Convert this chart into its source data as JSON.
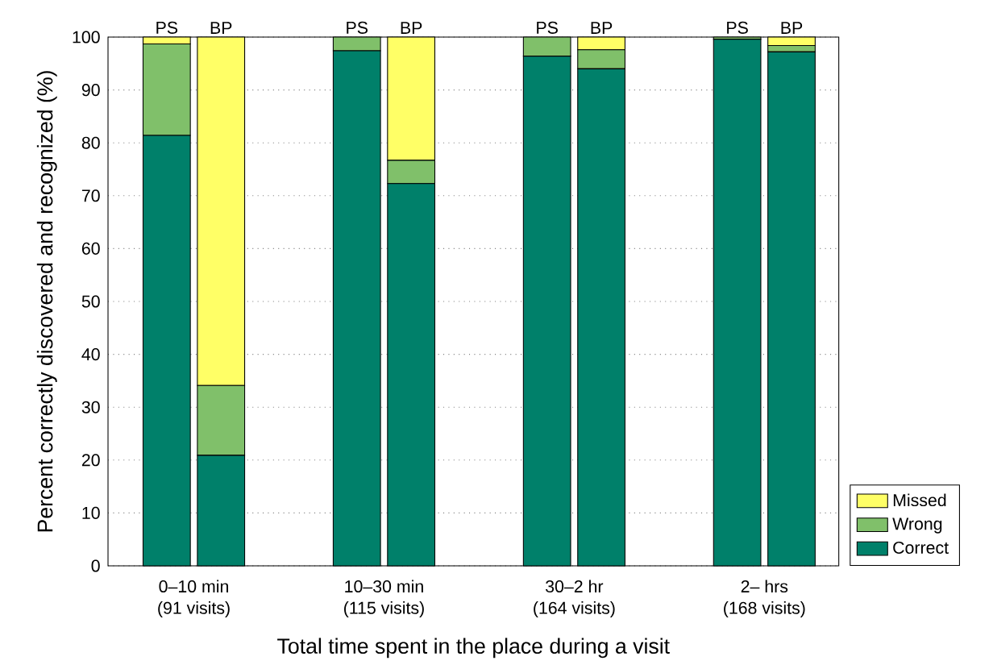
{
  "chart_data": {
    "type": "bar",
    "stacked": true,
    "xlabel": "Total time spent in the place during a visit",
    "ylabel": "Percent correctly discovered and recognized (%)",
    "categories": [
      "PS",
      "BP",
      "PS",
      "BP",
      "PS",
      "BP",
      "PS",
      "BP"
    ],
    "series": [
      {
        "name": "Correct",
        "color": "#00806a",
        "values": [
          81.4,
          20.9,
          97.4,
          72.3,
          96.4,
          94.0,
          99.6,
          97.2
        ]
      },
      {
        "name": "Wrong",
        "color": "#80c06a",
        "values": [
          17.3,
          13.2,
          2.6,
          4.4,
          3.6,
          3.6,
          0.4,
          1.2
        ]
      },
      {
        "name": "Missed",
        "color": "#ffff66",
        "values": [
          1.3,
          65.9,
          0,
          23.3,
          0,
          2.4,
          0,
          1.6
        ]
      }
    ],
    "annotations": [
      "0–10 min",
      "(91 visits)",
      "10–30 min",
      "(115 visits)",
      "30–2 hr",
      "(164 visits)",
      "2– hrs",
      "(168 visits)"
    ],
    "ylim": [
      0,
      100
    ],
    "yticks": [
      0,
      10,
      20,
      30,
      40,
      50,
      60,
      70,
      80,
      90,
      100
    ],
    "grid": "y",
    "legend": "bottom right"
  }
}
